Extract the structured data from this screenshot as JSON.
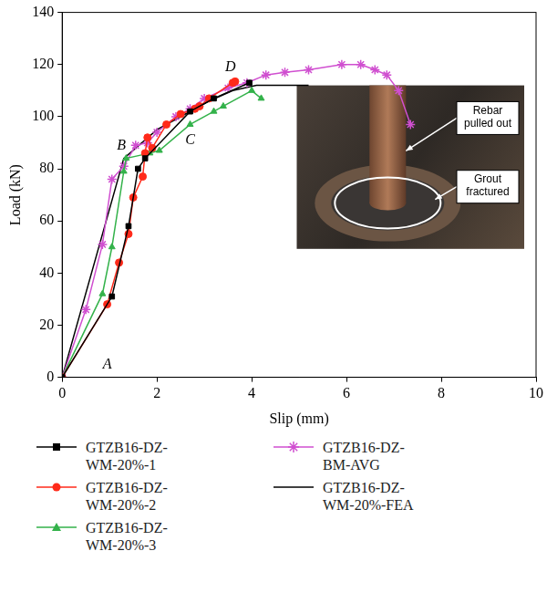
{
  "chart_data": {
    "type": "scatter",
    "x_label": "Slip (mm)",
    "y_label": "Load (kN)",
    "xlim": [
      0,
      10
    ],
    "ylim": [
      0,
      140
    ],
    "xticks": [
      0,
      2,
      4,
      6,
      8,
      10
    ],
    "yticks": [
      0,
      20,
      40,
      60,
      80,
      100,
      120,
      140
    ],
    "grid": false,
    "legend": "bottom",
    "series": [
      {
        "name": "GTZB16-DZ-WM-20%-1",
        "color": "#000000",
        "marker": "square",
        "line_style": "solid",
        "x": [
          0,
          1.05,
          1.4,
          1.6,
          1.75,
          2.7,
          3.2,
          3.95
        ],
        "values": [
          0,
          31,
          58,
          80,
          84,
          102,
          107,
          113
        ]
      },
      {
        "name": "GTZB16-DZ-WM-20%-2",
        "color": "#ff2a1a",
        "marker": "circle",
        "line_style": "solid",
        "x": [
          0,
          0.95,
          1.2,
          1.4,
          1.5,
          1.7,
          1.75,
          1.8,
          1.9,
          2.2,
          2.5,
          2.8,
          2.9,
          3.1,
          3.6,
          3.65
        ],
        "values": [
          0,
          28,
          44,
          55,
          69,
          77,
          86,
          92,
          88,
          97,
          101,
          103,
          104,
          107,
          113,
          113.5
        ]
      },
      {
        "name": "GTZB16-DZ-WM-20%-3",
        "color": "#33b24a",
        "marker": "triangle",
        "line_style": "solid",
        "x": [
          0,
          0.85,
          1.05,
          1.3,
          1.35,
          1.85,
          2.05,
          2.7,
          3.2,
          3.4,
          4.0,
          4.2
        ],
        "values": [
          0,
          32,
          50,
          79,
          84,
          86,
          87,
          97,
          102,
          104,
          110,
          107
        ]
      },
      {
        "name": "GTZB16-DZ-BM-AVG",
        "color": "#d04fd0",
        "marker": "star",
        "line_style": "solid",
        "x": [
          0,
          0.5,
          0.85,
          1.05,
          1.3,
          1.55,
          1.8,
          2.0,
          2.4,
          2.7,
          3.0,
          3.5,
          3.9,
          4.3,
          4.7,
          5.2,
          5.9,
          6.3,
          6.6,
          6.85,
          7.1,
          7.35
        ],
        "values": [
          0,
          26,
          51,
          76,
          81,
          89,
          90,
          94,
          100,
          103,
          107,
          111,
          113,
          116,
          117,
          118,
          120,
          120,
          118,
          116,
          110,
          97
        ]
      },
      {
        "name": "GTZB16-DZ-WM-20%-FEA",
        "color": "#000000",
        "marker": "none",
        "line_style": "solid",
        "x": [
          0,
          1.3,
          2.0,
          2.6,
          3.1,
          3.6,
          4.1,
          5.2
        ],
        "values": [
          0,
          84,
          95,
          101,
          106,
          110,
          112,
          112
        ]
      }
    ],
    "annotations": [
      {
        "text": "A",
        "x": 0.95,
        "y": 5
      },
      {
        "text": "B",
        "x": 1.25,
        "y": 89
      },
      {
        "text": "C",
        "x": 2.7,
        "y": 91
      },
      {
        "text": "D",
        "x": 3.55,
        "y": 119
      }
    ],
    "inset_labels": [
      "Rebar pulled out",
      "Grout fractured"
    ]
  }
}
